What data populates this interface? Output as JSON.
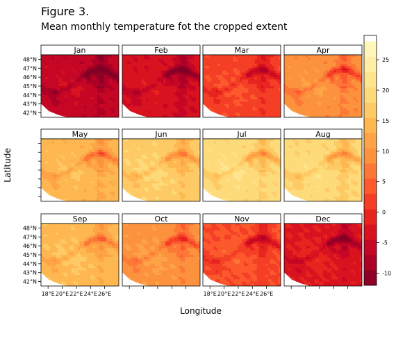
{
  "figure_label": "Figure 3.",
  "chart_data": {
    "type": "heatmap",
    "title": "Mean monthly temperature fot the cropped extent",
    "xlabel": "Longitude",
    "ylabel": "Latitude",
    "panels": [
      "Jan",
      "Feb",
      "Mar",
      "Apr",
      "May",
      "Jun",
      "Jul",
      "Aug",
      "Sep",
      "Oct",
      "Nov",
      "Dec"
    ],
    "x_ticks": [
      "18°E",
      "20°E",
      "22°E",
      "24°E",
      "26°E"
    ],
    "y_ticks": [
      "42°N",
      "43°N",
      "44°N",
      "45°N",
      "46°N",
      "47°N",
      "48°N"
    ],
    "xlim": [
      17,
      28
    ],
    "ylim": [
      41.5,
      48.5
    ],
    "panel_mean_temp": [
      -6,
      -4,
      2,
      9,
      14,
      17,
      19,
      18.5,
      14.5,
      9.5,
      3,
      -2.5
    ],
    "colorbar": {
      "min": -12,
      "max": 29,
      "step": 2.5,
      "ticks": [
        -10,
        -5,
        0,
        5,
        10,
        15,
        20,
        25
      ],
      "colors": [
        "#800026",
        "#bd0026",
        "#e31a1c",
        "#fc4e2a",
        "#fd8d3c",
        "#feb24c",
        "#fed976",
        "#ffeda0",
        "#ffffcc"
      ]
    }
  }
}
